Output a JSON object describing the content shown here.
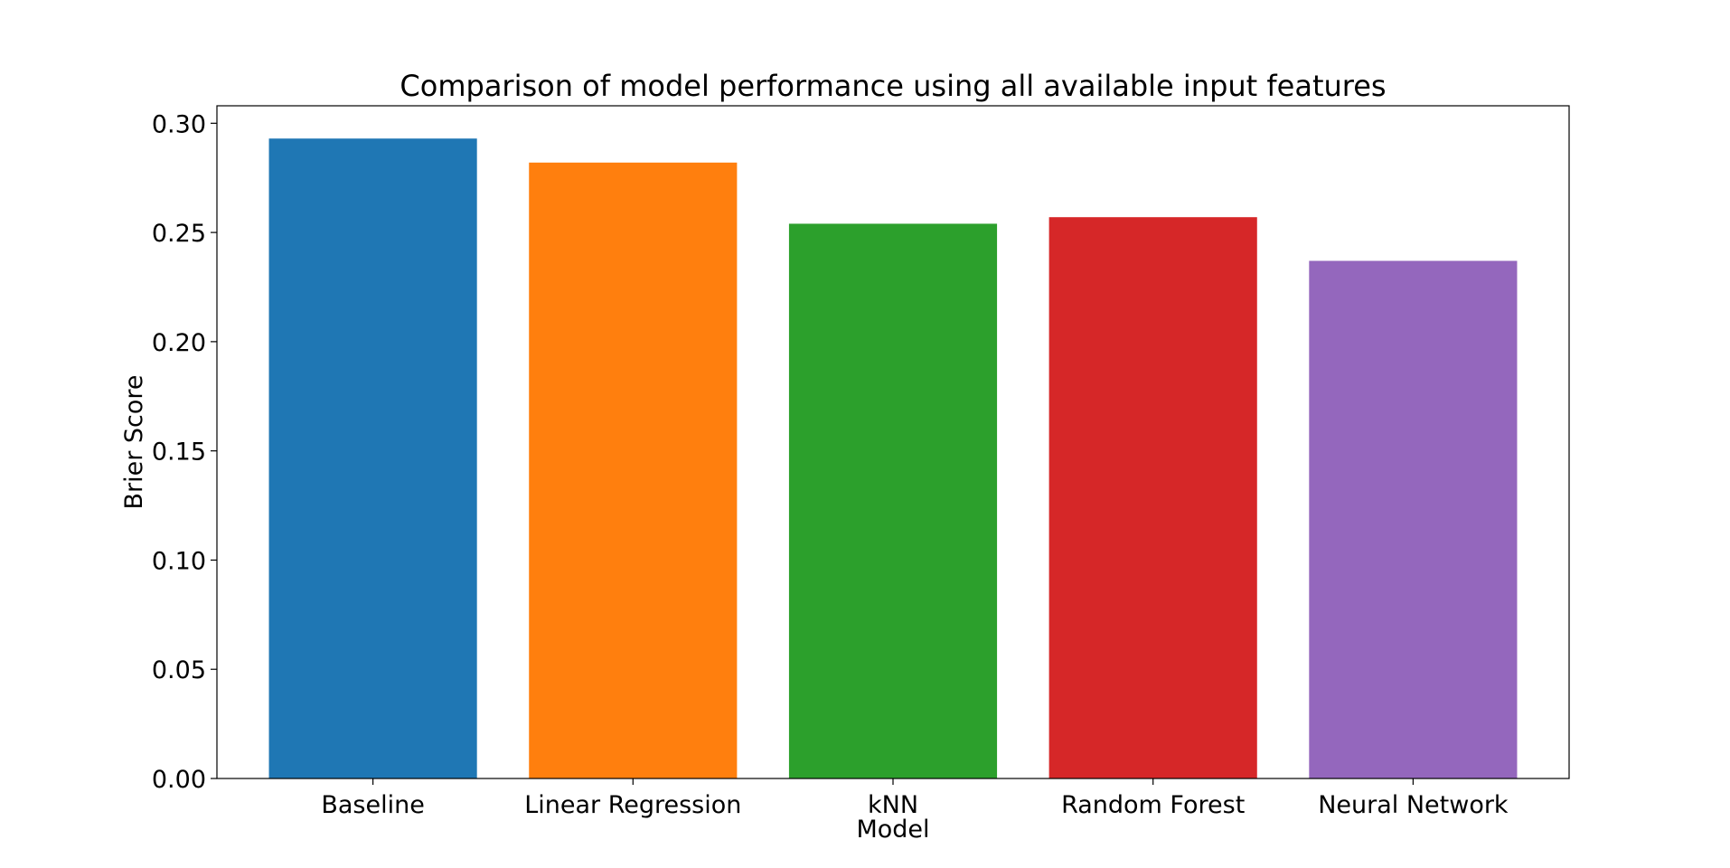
{
  "chart_data": {
    "type": "bar",
    "title": "Comparison of model performance using all available input features",
    "xlabel": "Model",
    "ylabel": "Brier Score",
    "categories": [
      "Baseline",
      "Linear Regression",
      "kNN",
      "Random Forest",
      "Neural Network"
    ],
    "values": [
      0.293,
      0.282,
      0.254,
      0.257,
      0.237
    ],
    "colors": [
      "#1f77b4",
      "#ff7f0e",
      "#2ca02c",
      "#d62728",
      "#9467bd"
    ],
    "ylim": [
      0,
      0.308
    ],
    "yticks": [
      "0.00",
      "0.05",
      "0.10",
      "0.15",
      "0.20",
      "0.25",
      "0.30"
    ],
    "grid": false,
    "legend": "none"
  }
}
